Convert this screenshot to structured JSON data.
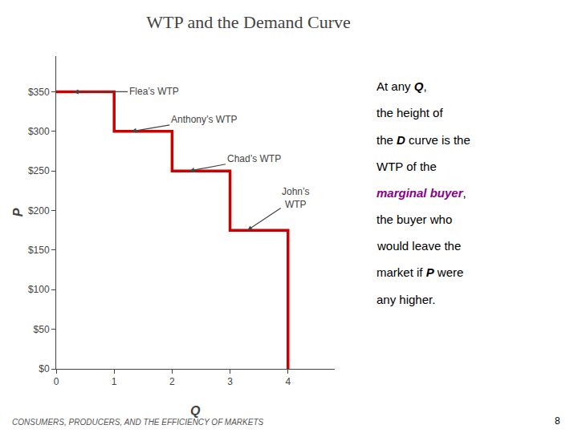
{
  "chart_data": {
    "type": "line",
    "title": "WTP and the Demand Curve",
    "x": [
      0,
      1,
      1,
      2,
      2,
      3,
      3,
      4,
      4
    ],
    "values": [
      350,
      350,
      300,
      300,
      250,
      250,
      175,
      175,
      0
    ],
    "color": "#cc0000",
    "x_label": "Q",
    "y_label": "P",
    "xlim": [
      0,
      4.8
    ],
    "ylim": [
      0,
      395
    ],
    "xticks": [
      0,
      1,
      2,
      3,
      4
    ],
    "yticks": [
      {
        "value": 0,
        "label": "$0"
      },
      {
        "value": 50,
        "label": "$50"
      },
      {
        "value": 100,
        "label": "$100"
      },
      {
        "value": 150,
        "label": "$150"
      },
      {
        "value": 200,
        "label": "$200"
      },
      {
        "value": 250,
        "label": "$250"
      },
      {
        "value": 300,
        "label": "$300"
      },
      {
        "value": 350,
        "label": "$350"
      }
    ],
    "grid": false,
    "annotations": [
      {
        "text": "Flea’s WTP"
      },
      {
        "text": "Anthony’s WTP"
      },
      {
        "text": "Chad’s WTP"
      },
      {
        "text": "John’s\nWTP"
      }
    ],
    "side_text": [
      [
        {
          "text": "At any "
        },
        {
          "text": "Q",
          "emphasis": true
        },
        {
          "text": ","
        }
      ],
      [
        {
          "text": "the height of"
        }
      ],
      [
        {
          "text": "the "
        },
        {
          "text": "D",
          "emphasis": true
        },
        {
          "text": " curve is the"
        }
      ],
      [
        {
          "text": "WTP of the"
        }
      ],
      [
        {
          "text": "marginal buyer",
          "emphasis": true,
          "color": "#8b008b"
        },
        {
          "text": ","
        }
      ],
      [
        {
          "text": "the buyer who"
        }
      ],
      [
        {
          "text": "would leave the"
        }
      ],
      [
        {
          "text": "market if "
        },
        {
          "text": "P",
          "emphasis": true
        },
        {
          "text": " were"
        }
      ],
      [
        {
          "text": "any higher."
        }
      ]
    ],
    "footer": "CONSUMERS, PRODUCERS, AND THE EFFICIENCY OF MARKETS",
    "page_number": "8"
  }
}
